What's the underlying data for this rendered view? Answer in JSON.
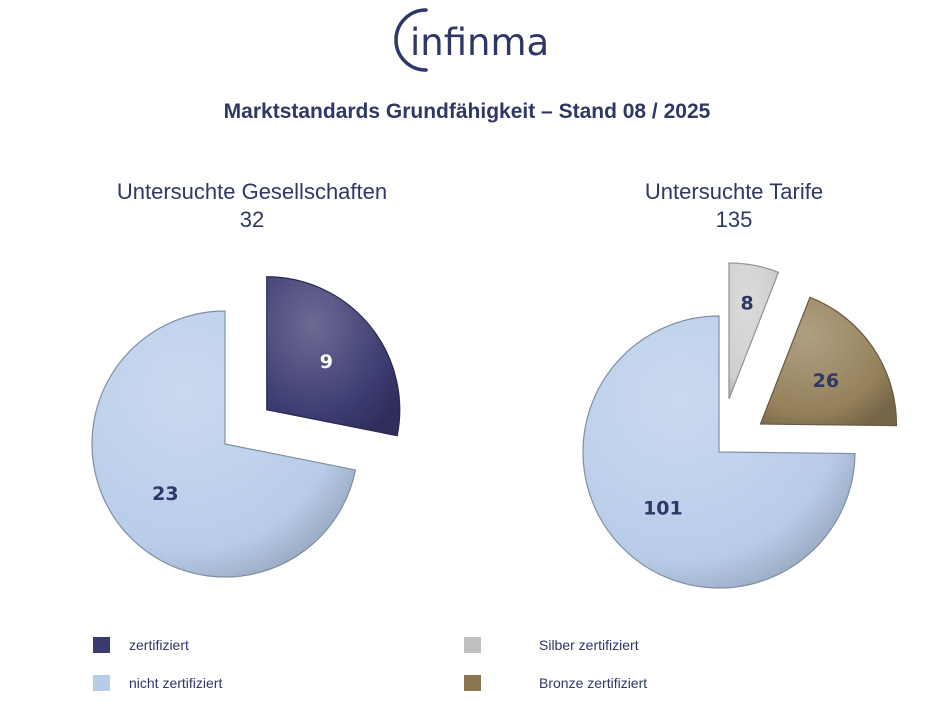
{
  "logo": {
    "text": "infinma"
  },
  "header": {
    "title": "Marktstandards Grundfähigkeit – Stand 08 / 2025"
  },
  "chart_data": [
    {
      "type": "pie",
      "title": "Untersuchte Gesellschaften",
      "subtitle": "32",
      "slices": [
        {
          "label": "zertifiziert",
          "value": 9,
          "color": "#3b3a70",
          "exploded": true
        },
        {
          "label": "nicht zertifiziert",
          "value": 23,
          "color": "#b8cce9",
          "exploded": false
        }
      ]
    },
    {
      "type": "pie",
      "title": "Untersuchte Tarife",
      "subtitle": "135",
      "slices": [
        {
          "label": "Silber zertifiziert",
          "value": 8,
          "color": "#cfcfcf",
          "exploded": true
        },
        {
          "label": "Bronze zertifiziert",
          "value": 26,
          "color": "#94805a",
          "exploded": true
        },
        {
          "label": "nicht zertifiziert",
          "value": 101,
          "color": "#b8cce9",
          "exploded": false
        }
      ]
    }
  ],
  "legend": [
    {
      "label": "zertifiziert",
      "color": "#3b3a70"
    },
    {
      "label": "nicht zertifiziert",
      "color": "#b8cce9"
    },
    {
      "label": "Silber zertifiziert",
      "color": "#c0c0c0"
    },
    {
      "label": "Bronze zertifiziert",
      "color": "#8a7650"
    }
  ]
}
